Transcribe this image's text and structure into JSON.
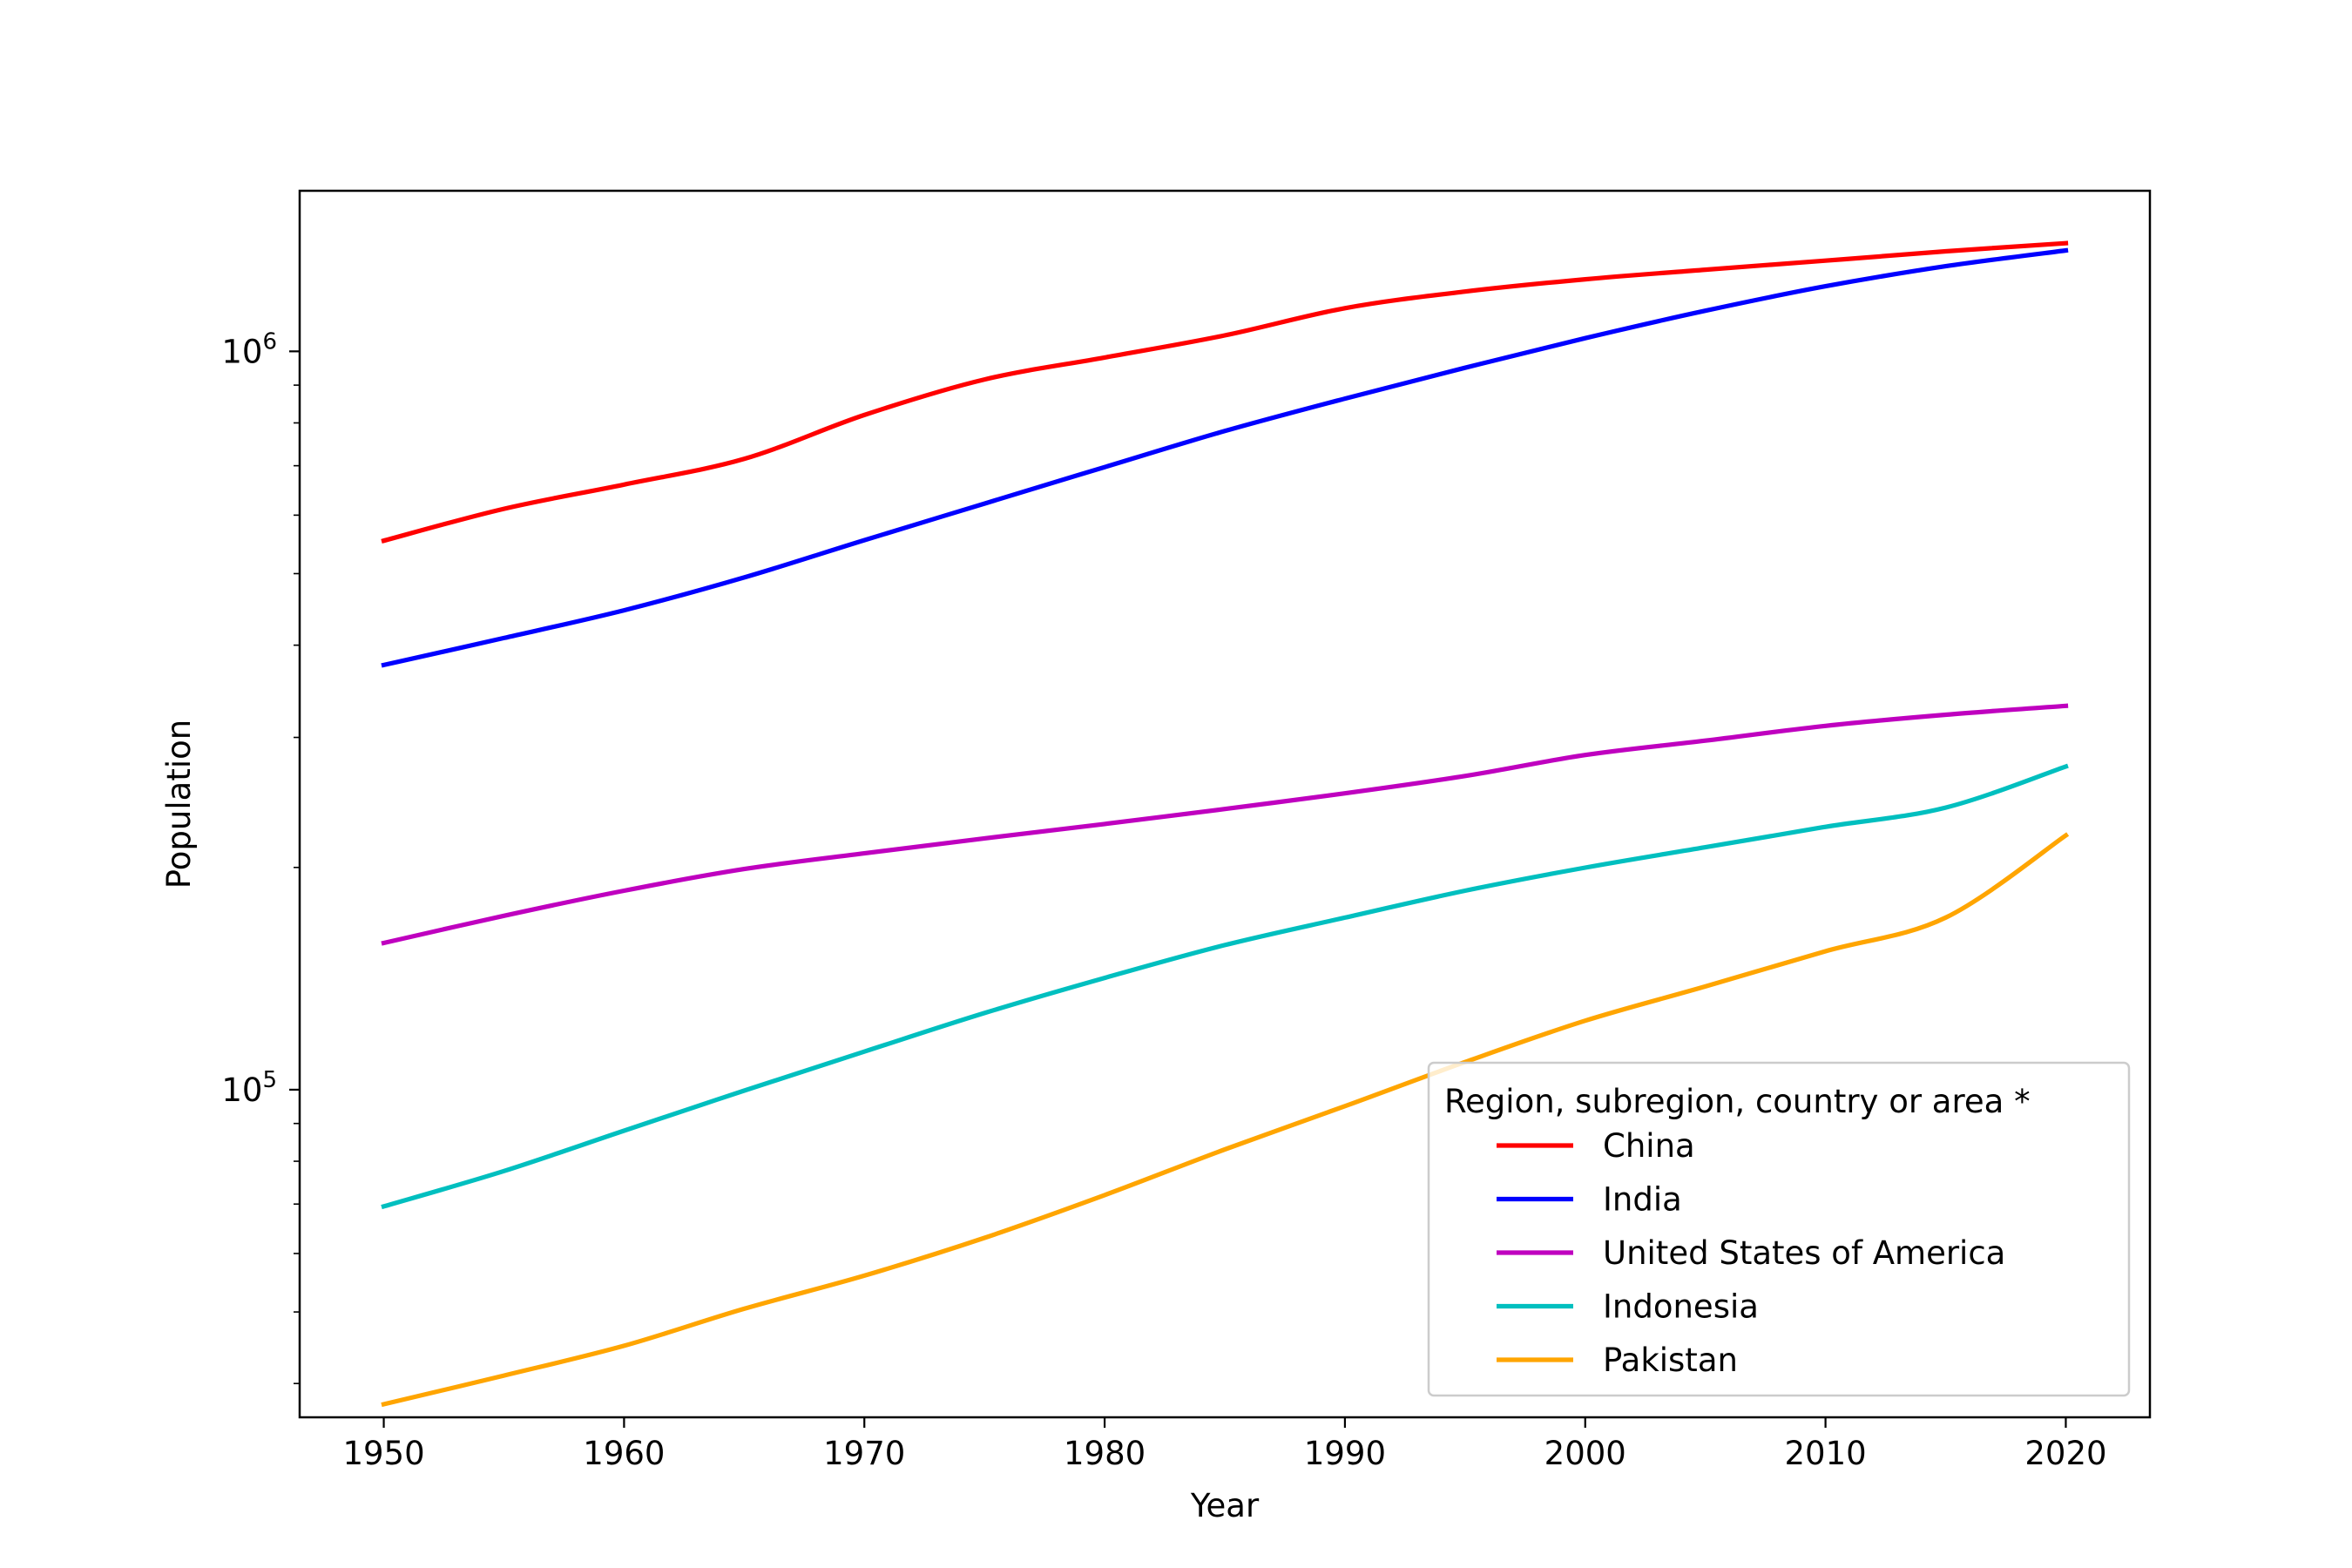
{
  "chart_data": {
    "type": "line",
    "title": "",
    "xlabel": "Year",
    "ylabel": "Population",
    "yscale": "log",
    "xlim": [
      1946.5,
      2023.5
    ],
    "ylim": [
      36000,
      1650000
    ],
    "grid": false,
    "legend_title": "Region, subregion, country or area *",
    "legend_position": "lower-right",
    "x_ticks": [
      1950,
      1960,
      1970,
      1980,
      1990,
      2000,
      2010,
      2020
    ],
    "x_tick_labels": [
      "1950",
      "1960",
      "1970",
      "1980",
      "1990",
      "2000",
      "2010",
      "2020"
    ],
    "y_ticks": [
      100000,
      1000000
    ],
    "y_tick_labels": [
      {
        "base": "10",
        "exp": "5"
      },
      {
        "base": "10",
        "exp": "6"
      }
    ],
    "x": [
      1950,
      1955,
      1960,
      1965,
      1970,
      1975,
      1980,
      1985,
      1990,
      1995,
      2000,
      2005,
      2010,
      2015,
      2020
    ],
    "series": [
      {
        "name": "China",
        "color": "#ff0000",
        "values": [
          554000,
          612000,
          660000,
          715000,
          820000,
          916000,
          981000,
          1051000,
          1144000,
          1205000,
          1252000,
          1290000,
          1327000,
          1366000,
          1401000
        ]
      },
      {
        "name": "India",
        "color": "#0000ff",
        "values": [
          376000,
          409000,
          446000,
          494000,
          555000,
          622000,
          697000,
          780000,
          863000,
          950000,
          1042000,
          1135000,
          1225000,
          1304000,
          1370000
        ]
      },
      {
        "name": "United States of America",
        "color": "#bf00bf",
        "values": [
          158000,
          172000,
          186000,
          199000,
          209000,
          219000,
          229000,
          240000,
          252000,
          266000,
          284000,
          297000,
          311000,
          322000,
          331000
        ]
      },
      {
        "name": "Indonesia",
        "color": "#00bfbf",
        "values": [
          69500,
          77600,
          88000,
          99700,
          112600,
          127000,
          141700,
          157000,
          171000,
          186000,
          199900,
          213000,
          227000,
          241000,
          274000
        ]
      },
      {
        "name": "Pakistan",
        "color": "#ffa500",
        "values": [
          37500,
          41000,
          45000,
          50500,
          56000,
          63000,
          72000,
          83000,
          95000,
          109000,
          124000,
          138000,
          154000,
          171000,
          221000
        ]
      }
    ]
  }
}
